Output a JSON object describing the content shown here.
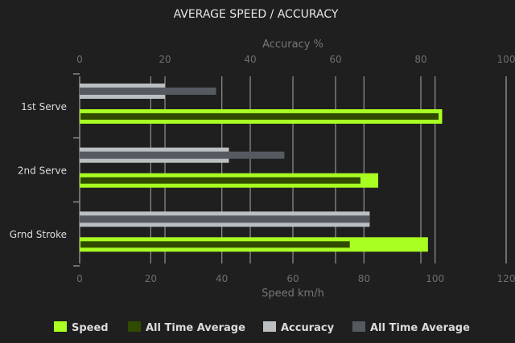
{
  "chart_data": {
    "type": "bar",
    "orientation": "horizontal",
    "title": "AVERAGE SPEED / ACCURACY",
    "categories": [
      "1st Serve",
      "2nd Serve",
      "Grnd Stroke"
    ],
    "top_axis": {
      "label": "Accuracy %",
      "range": [
        0,
        100
      ],
      "ticks": [
        0,
        20,
        40,
        60,
        80,
        100
      ]
    },
    "bottom_axis": {
      "label": "Speed km/h",
      "range": [
        0,
        120
      ],
      "ticks": [
        0,
        20,
        40,
        60,
        80,
        100,
        120
      ]
    },
    "grid": true,
    "legend_position": "bottom",
    "series": [
      {
        "name": "Speed",
        "axis": "bottom",
        "color": "#aaff22",
        "values": [
          102,
          84,
          98
        ]
      },
      {
        "name": "All Time Average",
        "axis": "bottom",
        "color": "#304a00",
        "values": [
          101,
          79,
          76
        ]
      },
      {
        "name": "Accuracy",
        "axis": "top",
        "color": "#bcbfc1",
        "values": [
          20,
          35,
          68
        ]
      },
      {
        "name": "All Time Average",
        "axis": "top",
        "color": "#555a61",
        "values": [
          32,
          48,
          68
        ]
      }
    ]
  }
}
